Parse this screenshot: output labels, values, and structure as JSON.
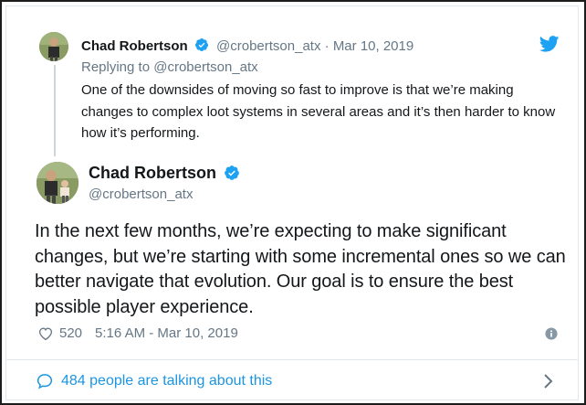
{
  "parent_tweet": {
    "name": "Chad Robertson",
    "handle": "@crobertson_atx",
    "separator": "·",
    "date": "Mar 10, 2019",
    "replying_prefix": "Replying to",
    "replying_to": "@crobertson_atx",
    "text": "One of the downsides of moving so fast to improve is that we’re making changes to complex loot systems in several areas and it’s then harder to know how it’s performing."
  },
  "main_tweet": {
    "name": "Chad Robertson",
    "handle": "@crobertson_atx",
    "text": "In the next few months, we’re expecting to make significant changes, but we’re starting with some incremental ones so we can better navigate that evolution. Our goal is to ensure the best possible player experience.",
    "likes": "520",
    "timestamp": "5:16 AM - Mar 10, 2019"
  },
  "footer": {
    "talking_text": "484 people are talking about this"
  },
  "colors": {
    "brand": "#1da1f2",
    "link": "#1b95e0",
    "secondary_text": "#657786",
    "border": "#e1e8ed"
  },
  "icons": {
    "verified": "verified-badge-icon",
    "bird": "twitter-bird-icon",
    "heart": "heart-icon",
    "info": "info-icon",
    "bubble": "speech-bubble-icon",
    "chevron": "chevron-right-icon"
  }
}
